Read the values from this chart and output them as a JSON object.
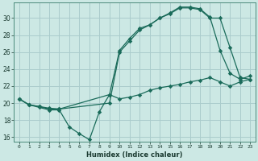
{
  "xlabel": "Humidex (Indice chaleur)",
  "bg_color": "#cce8e4",
  "line_color": "#1a6b5a",
  "grid_color": "#aacccc",
  "xlim": [
    -0.5,
    23.5
  ],
  "ylim": [
    15.5,
    31.8
  ],
  "xticks": [
    0,
    1,
    2,
    3,
    4,
    5,
    6,
    7,
    8,
    9,
    10,
    11,
    12,
    13,
    14,
    15,
    16,
    17,
    18,
    19,
    20,
    21,
    22,
    23
  ],
  "yticks": [
    16,
    18,
    20,
    22,
    24,
    26,
    28,
    30
  ],
  "line1_x": [
    0,
    1,
    2,
    3,
    4,
    9,
    10,
    11,
    12,
    13,
    14,
    15,
    16,
    17,
    18,
    19,
    20,
    21,
    22,
    23
  ],
  "line1_y": [
    20.5,
    19.8,
    19.6,
    19.3,
    19.3,
    20.0,
    26.0,
    27.3,
    28.6,
    29.2,
    30.0,
    30.5,
    31.2,
    31.2,
    31.0,
    30.0,
    30.0,
    26.5,
    23.0,
    22.8
  ],
  "line2_x": [
    0,
    1,
    2,
    3,
    4,
    9,
    10,
    11,
    12,
    13,
    14,
    15,
    16,
    17,
    18,
    19,
    20,
    21,
    22,
    23
  ],
  "line2_y": [
    20.5,
    19.8,
    19.6,
    19.4,
    19.3,
    21.0,
    26.2,
    27.6,
    28.8,
    29.2,
    30.0,
    30.6,
    31.3,
    31.3,
    31.1,
    30.1,
    26.2,
    23.5,
    22.8,
    23.2
  ],
  "line3_x": [
    0,
    1,
    2,
    3,
    4,
    5,
    6,
    7,
    8,
    9,
    10,
    11,
    12,
    13,
    14,
    15,
    16,
    17,
    18,
    19,
    20,
    21,
    22,
    23
  ],
  "line3_y": [
    20.5,
    19.8,
    19.5,
    19.2,
    19.2,
    17.2,
    16.4,
    15.7,
    19.0,
    21.0,
    20.5,
    20.7,
    21.0,
    21.5,
    21.8,
    22.0,
    22.2,
    22.5,
    22.7,
    23.0,
    22.5,
    22.0,
    22.5,
    22.8
  ]
}
